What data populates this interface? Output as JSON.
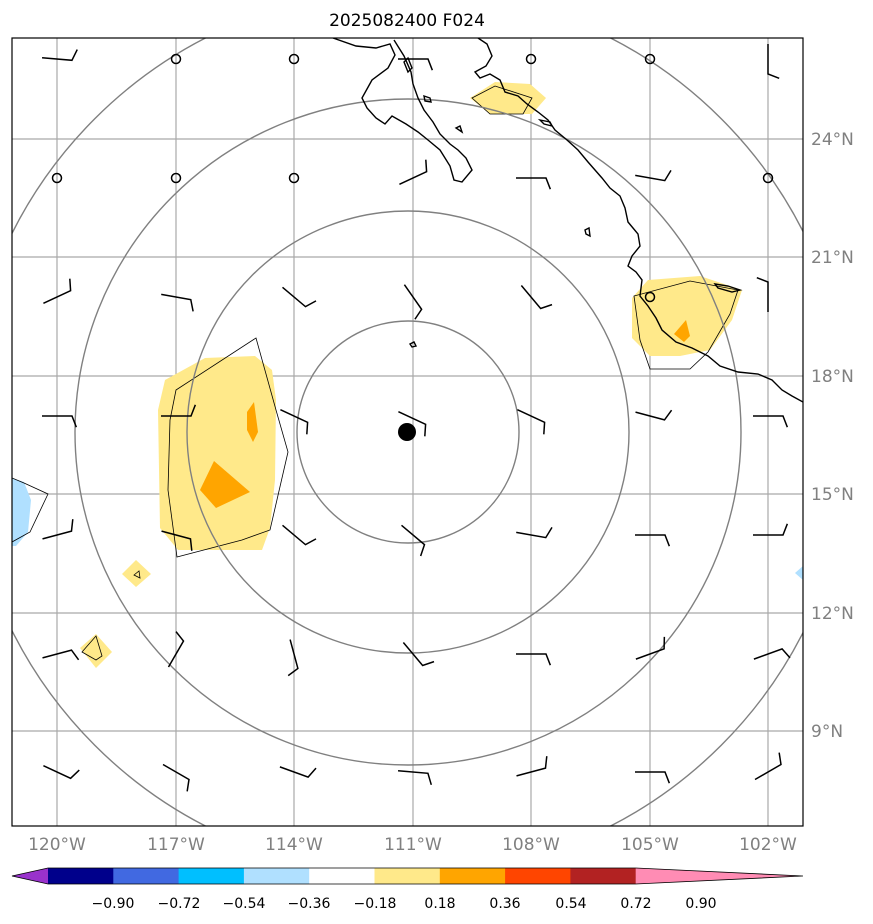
{
  "title": "2025082400 F024",
  "map": {
    "lon_range": [
      -121.5,
      -101.5
    ],
    "lat_range": [
      6,
      26
    ],
    "lat_labels": [
      "9°N",
      "12°N",
      "15°N",
      "18°N",
      "21°N",
      "24°N"
    ],
    "lon_labels": [
      "120°W",
      "117°W",
      "114°W",
      "111°W",
      "108°W",
      "105°W",
      "102°W"
    ],
    "storm_center": {
      "lon": -110.9,
      "lat": 16.6
    },
    "range_rings": 4
  },
  "colorbar": {
    "ticks": [
      "−0.90",
      "−0.72",
      "−0.54",
      "−0.36",
      "−0.18",
      "0.18",
      "0.36",
      "0.54",
      "0.72",
      "0.90"
    ],
    "colors": [
      "#9932cc",
      "#00008b",
      "#4169e1",
      "#00bfff",
      "#b0e0ff",
      "#ffffff",
      "#ffe98a",
      "#ffa500",
      "#ff4500",
      "#b22222",
      "#ff8cb4"
    ]
  }
}
